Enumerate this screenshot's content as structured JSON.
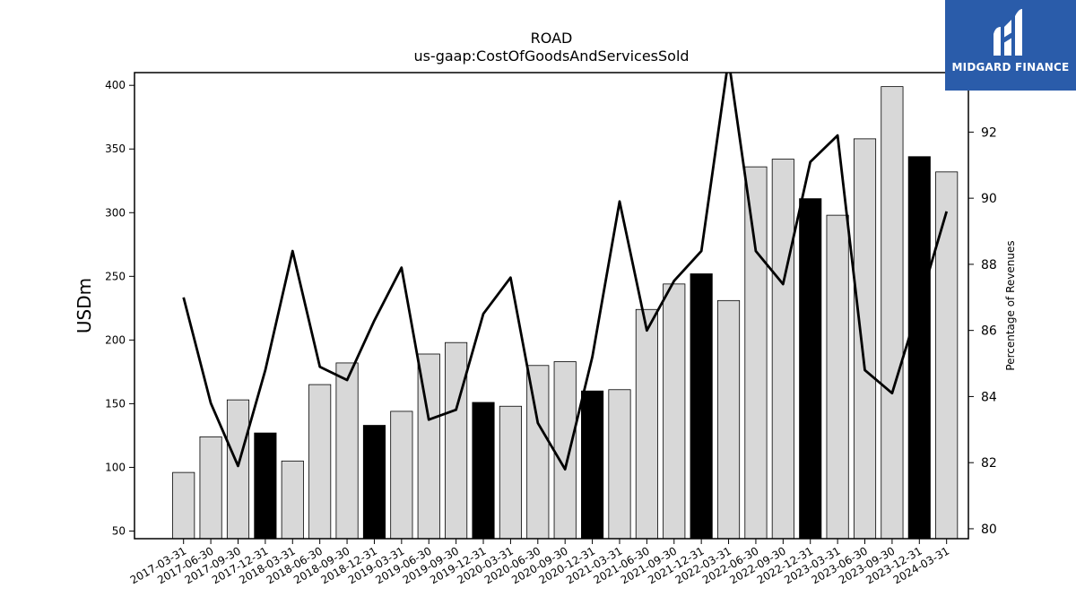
{
  "brand": {
    "name": "MIDGARD FINANCE",
    "bg_color": "#2a5caa"
  },
  "chart_data": {
    "type": "bar+line",
    "title": "ROAD",
    "subtitle": "us-gaap:CostOfGoodsAndServicesSold",
    "ylabel": "USDm",
    "y2label": "Percentage of Revenues",
    "ylim": [
      44,
      410
    ],
    "y2lim": [
      79.7,
      93.8
    ],
    "yticks": [
      50,
      100,
      150,
      200,
      250,
      300,
      350,
      400
    ],
    "y2ticks": [
      80,
      82,
      84,
      86,
      88,
      90,
      92
    ],
    "categories": [
      "2017-03-31",
      "2017-06-30",
      "2017-09-30",
      "2017-12-31",
      "2018-03-31",
      "2018-06-30",
      "2018-09-30",
      "2018-12-31",
      "2019-03-31",
      "2019-06-30",
      "2019-09-30",
      "2019-12-31",
      "2020-03-31",
      "2020-06-30",
      "2020-09-30",
      "2020-12-31",
      "2021-03-31",
      "2021-06-30",
      "2021-09-30",
      "2021-12-31",
      "2022-03-31",
      "2022-06-30",
      "2022-09-30",
      "2022-12-31",
      "2023-03-31",
      "2023-06-30",
      "2023-09-30",
      "2023-12-31",
      "2024-03-31"
    ],
    "bars": [
      96,
      124,
      153,
      127,
      105,
      165,
      182,
      133,
      144,
      189,
      198,
      151,
      148,
      180,
      183,
      160,
      161,
      224,
      244,
      252,
      231,
      336,
      342,
      311,
      298,
      358,
      399,
      344,
      332
    ],
    "bar_highlight": [
      false,
      false,
      false,
      true,
      false,
      false,
      false,
      true,
      false,
      false,
      false,
      true,
      false,
      false,
      false,
      true,
      false,
      false,
      false,
      true,
      false,
      false,
      false,
      true,
      false,
      false,
      false,
      true,
      false
    ],
    "line": [
      87.0,
      83.8,
      81.9,
      84.8,
      88.4,
      84.9,
      84.5,
      86.3,
      87.9,
      83.3,
      83.6,
      86.5,
      87.6,
      83.2,
      81.8,
      85.2,
      89.9,
      86.0,
      87.5,
      88.4,
      94.2,
      88.4,
      87.4,
      91.1,
      91.9,
      84.8,
      84.1,
      86.8,
      89.6
    ],
    "colors": {
      "bar": "#d8d8d8",
      "bar_highlight": "#000000",
      "line": "#000000"
    }
  }
}
